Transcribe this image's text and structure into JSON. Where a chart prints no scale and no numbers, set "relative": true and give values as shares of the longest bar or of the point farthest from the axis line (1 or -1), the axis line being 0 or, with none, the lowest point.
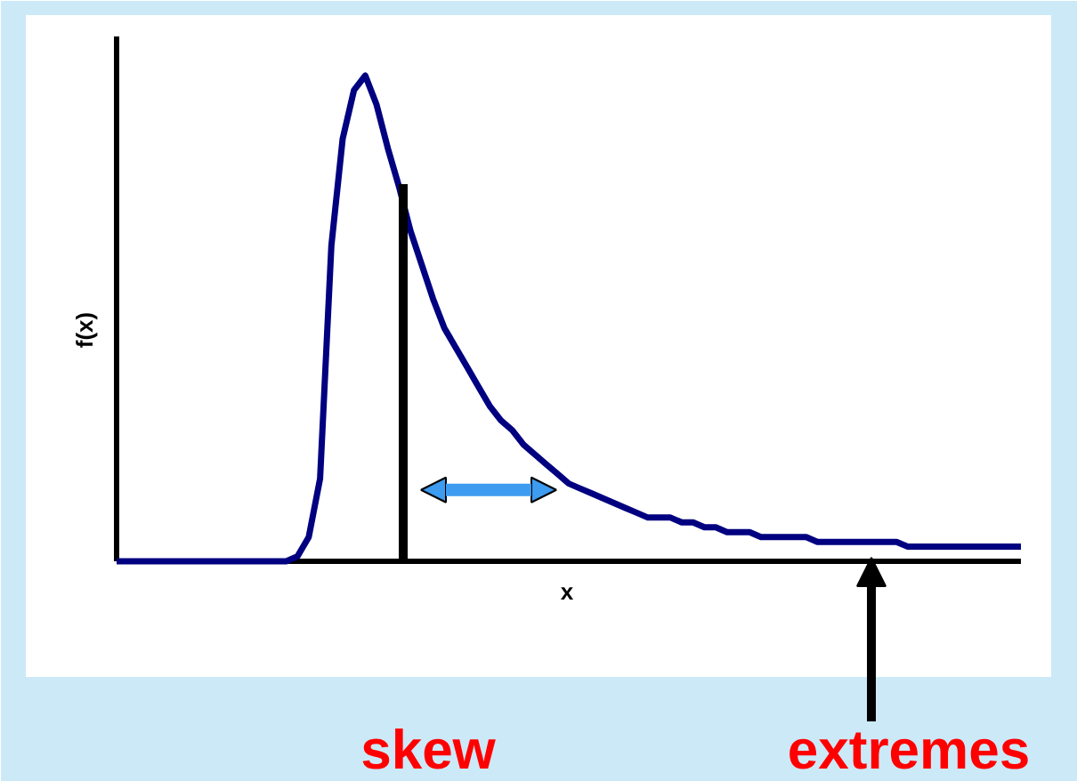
{
  "chart_data": {
    "type": "line",
    "relative": true,
    "color": "#000080",
    "xlabel": "x",
    "ylabel": "f(x)",
    "categories": [
      null,
      null,
      null,
      null,
      null,
      null,
      null,
      null,
      null,
      null,
      null,
      null,
      null,
      null,
      null,
      null,
      null,
      null,
      null,
      null,
      null,
      null,
      null,
      null,
      null,
      null,
      null,
      null,
      null,
      null,
      null,
      null,
      null,
      null,
      null,
      null,
      null,
      null,
      null,
      null,
      null,
      null,
      null,
      null,
      null,
      null,
      null,
      null,
      null,
      null,
      null,
      null,
      null,
      null,
      null,
      null,
      null,
      null,
      null,
      null,
      null,
      null,
      null,
      null,
      null,
      null,
      null,
      null,
      null,
      null,
      null,
      null,
      null,
      null,
      null,
      null,
      null,
      null,
      null,
      null,
      null
    ],
    "values": [
      0,
      0,
      0,
      0,
      0,
      0,
      0,
      0,
      0,
      0,
      0,
      0,
      0,
      0,
      0,
      0,
      0.01,
      0.05,
      0.17,
      0.65,
      0.87,
      0.97,
      1.0,
      0.94,
      0.85,
      0.77,
      0.68,
      0.61,
      0.54,
      0.48,
      0.44,
      0.4,
      0.36,
      0.32,
      0.29,
      0.27,
      0.24,
      0.22,
      0.2,
      0.18,
      0.16,
      0.15,
      0.14,
      0.13,
      0.12,
      0.11,
      0.1,
      0.09,
      0.09,
      0.09,
      0.08,
      0.08,
      0.07,
      0.07,
      0.06,
      0.06,
      0.06,
      0.05,
      0.05,
      0.05,
      0.05,
      0.05,
      0.04,
      0.04,
      0.04,
      0.04,
      0.04,
      0.04,
      0.04,
      0.04,
      0.03,
      0.03,
      0.03,
      0.03,
      0.03,
      0.03,
      0.03,
      0.03,
      0.03,
      0.03,
      0.03
    ],
    "annotations": [
      "skew",
      "extremes"
    ]
  }
}
